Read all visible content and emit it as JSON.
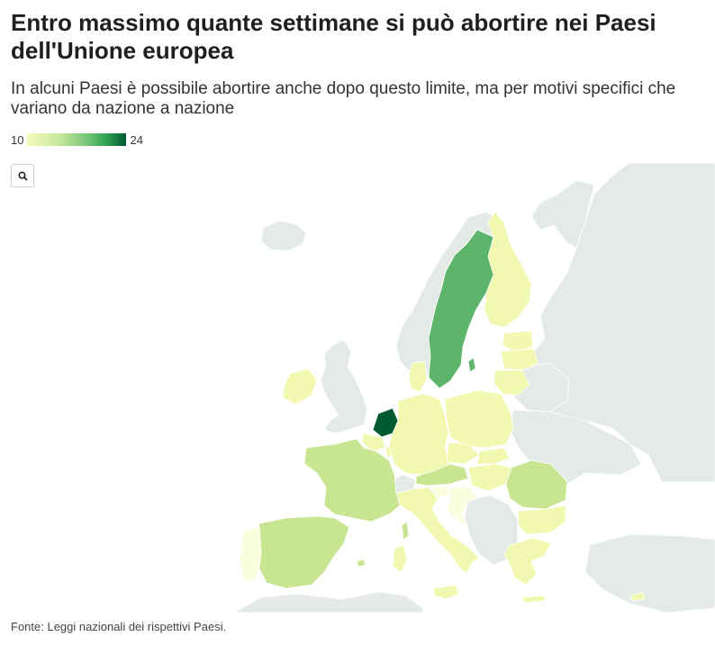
{
  "title": "Entro massimo quante settimane si può abortire nei Paesi dell'Unione europea",
  "subtitle": "In alcuni Paesi è possibile abortire anche dopo questo limite, ma per motivi specifici che variano da nazione a nazione",
  "legend": {
    "min_label": "10",
    "max_label": "24",
    "min": 10,
    "max": 24
  },
  "zoom_button": {
    "icon": "search-icon"
  },
  "source": "Fonte: Leggi nazionali dei rispettivi Paesi.",
  "colors": {
    "non_eu": "#e4ebe7",
    "scale": [
      "#f7fcb9",
      "#c2e699",
      "#78c679",
      "#31a354",
      "#005a32"
    ],
    "border": "#ffffff"
  },
  "countries": [
    {
      "name": "Paesi Bassi",
      "weeks": 24
    },
    {
      "name": "Svezia",
      "weeks": 18
    },
    {
      "name": "Francia",
      "weeks": 14
    },
    {
      "name": "Spagna",
      "weeks": 14
    },
    {
      "name": "Romania",
      "weeks": 14
    },
    {
      "name": "Austria",
      "weeks": 14
    },
    {
      "name": "Irlanda",
      "weeks": 12
    },
    {
      "name": "Finlandia",
      "weeks": 12
    },
    {
      "name": "Germania",
      "weeks": 12
    },
    {
      "name": "Italia",
      "weeks": 12
    },
    {
      "name": "Danimarca",
      "weeks": 12
    },
    {
      "name": "Estonia",
      "weeks": 12
    },
    {
      "name": "Lettonia",
      "weeks": 12
    },
    {
      "name": "Lituania",
      "weeks": 12
    },
    {
      "name": "Polonia",
      "weeks": 12
    },
    {
      "name": "Repubblica Ceca",
      "weeks": 12
    },
    {
      "name": "Slovacchia",
      "weeks": 12
    },
    {
      "name": "Ungheria",
      "weeks": 12
    },
    {
      "name": "Bulgaria",
      "weeks": 12
    },
    {
      "name": "Grecia",
      "weeks": 12
    },
    {
      "name": "Belgio",
      "weeks": 12
    },
    {
      "name": "Lussemburgo",
      "weeks": 12
    },
    {
      "name": "Croazia",
      "weeks": 10
    },
    {
      "name": "Slovenia",
      "weeks": 10
    },
    {
      "name": "Portogallo",
      "weeks": 10
    },
    {
      "name": "Cipro",
      "weeks": 12
    }
  ]
}
